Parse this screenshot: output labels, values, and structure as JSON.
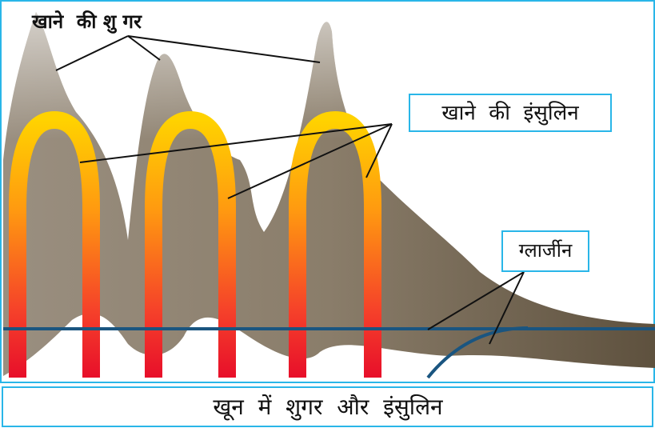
{
  "labels": {
    "meal_sugar": "खाने  की शु गर",
    "meal_insulin": "खाने  की  इंसुलिन",
    "glargine": "ग्लार्जीन"
  },
  "caption": "खून  में  शुगर  और  इंसुलिन"
}
